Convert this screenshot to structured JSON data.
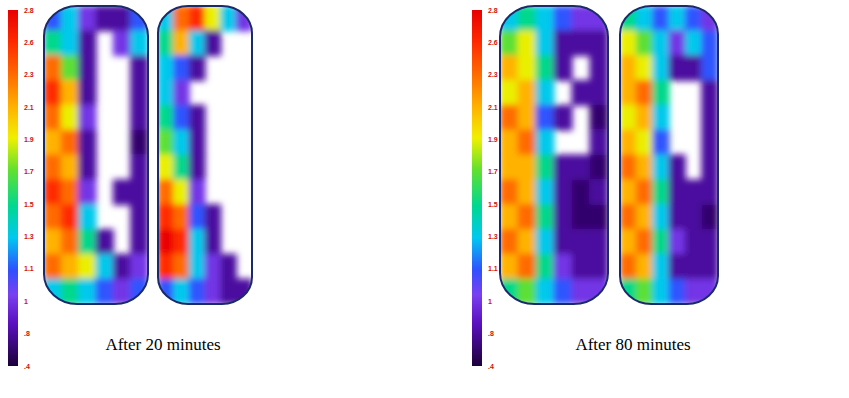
{
  "chart_data": [
    {
      "type": "heatmap",
      "title": "After 20 minutes",
      "colorbar": {
        "range": [
          0.4,
          2.8
        ],
        "ticks": [
          2.8,
          2.6,
          2.3,
          2.1,
          1.9,
          1.7,
          1.5,
          1.3,
          1.1,
          1,
          {
            "value": 0.8,
            "label": ".8"
          },
          {
            "value": 0.4,
            "label": ".4"
          }
        ]
      },
      "maps": [
        {
          "cells": [
            [
              1.1,
              1.3,
              1.0,
              0.8,
              0.8,
              1.1
            ],
            [
              1.5,
              1.3,
              0.8,
              null,
              1.0,
              1.3
            ],
            [
              2.3,
              1.7,
              0.8,
              null,
              null,
              0.8
            ],
            [
              2.6,
              2.1,
              0.8,
              null,
              null,
              0.8
            ],
            [
              2.3,
              1.9,
              1.0,
              null,
              null,
              0.8
            ],
            [
              2.1,
              2.3,
              0.8,
              null,
              null,
              0.6
            ],
            [
              2.3,
              2.1,
              0.8,
              null,
              null,
              0.8
            ],
            [
              2.6,
              2.3,
              1.0,
              null,
              0.8,
              0.8
            ],
            [
              2.3,
              2.6,
              1.3,
              null,
              null,
              0.8
            ],
            [
              2.1,
              2.3,
              1.5,
              0.8,
              null,
              0.8
            ],
            [
              2.3,
              2.1,
              1.9,
              1.3,
              0.8,
              1.0
            ],
            [
              1.3,
              1.5,
              1.3,
              1.1,
              1.0,
              1.1
            ]
          ]
        },
        {
          "cells": [
            [
              1.3,
              2.3,
              2.6,
              1.9,
              1.3,
              1.0
            ],
            [
              1.5,
              2.1,
              1.3,
              0.8,
              null,
              null
            ],
            [
              1.3,
              1.1,
              0.8,
              null,
              null,
              null
            ],
            [
              1.3,
              1.0,
              null,
              null,
              null,
              null
            ],
            [
              1.5,
              1.1,
              0.8,
              null,
              null,
              null
            ],
            [
              1.7,
              1.3,
              0.8,
              null,
              null,
              null
            ],
            [
              1.9,
              1.5,
              0.8,
              null,
              null,
              null
            ],
            [
              2.3,
              1.9,
              1.0,
              null,
              null,
              null
            ],
            [
              2.6,
              2.3,
              1.1,
              0.8,
              null,
              null
            ],
            [
              2.8,
              2.6,
              1.3,
              0.8,
              null,
              null
            ],
            [
              2.6,
              2.3,
              1.3,
              1.0,
              0.8,
              null
            ],
            [
              1.1,
              1.3,
              1.1,
              1.0,
              0.8,
              0.8
            ]
          ]
        }
      ]
    },
    {
      "type": "heatmap",
      "title": "After 80 minutes",
      "colorbar": {
        "range": [
          0.4,
          2.8
        ],
        "ticks": [
          2.8,
          2.6,
          2.3,
          2.1,
          1.9,
          1.7,
          1.5,
          1.3,
          1.1,
          1,
          {
            "value": 0.8,
            "label": ".8"
          },
          {
            "value": 0.4,
            "label": ".4"
          }
        ]
      },
      "maps": [
        {
          "cells": [
            [
              1.3,
              1.5,
              1.3,
              1.1,
              1.0,
              1.0
            ],
            [
              1.7,
              1.9,
              1.3,
              0.8,
              0.8,
              0.8
            ],
            [
              2.1,
              1.9,
              1.5,
              0.8,
              null,
              0.8
            ],
            [
              1.9,
              2.1,
              1.3,
              null,
              0.8,
              0.8
            ],
            [
              2.3,
              2.1,
              1.1,
              0.8,
              null,
              0.6
            ],
            [
              2.1,
              2.3,
              1.3,
              null,
              null,
              0.8
            ],
            [
              2.1,
              2.1,
              1.5,
              0.8,
              0.8,
              0.6
            ],
            [
              2.3,
              2.1,
              1.3,
              0.8,
              0.6,
              0.8
            ],
            [
              2.1,
              2.3,
              1.5,
              0.8,
              0.6,
              0.6
            ],
            [
              2.3,
              2.1,
              1.3,
              0.8,
              0.8,
              0.8
            ],
            [
              2.1,
              2.3,
              1.5,
              1.0,
              0.8,
              0.8
            ],
            [
              1.5,
              1.7,
              1.3,
              1.1,
              1.0,
              1.0
            ]
          ]
        },
        {
          "cells": [
            [
              1.5,
              1.3,
              1.1,
              1.3,
              1.1,
              1.0
            ],
            [
              1.9,
              1.7,
              1.3,
              1.0,
              1.3,
              1.1
            ],
            [
              2.1,
              1.9,
              1.3,
              0.8,
              0.8,
              1.1
            ],
            [
              2.1,
              2.3,
              1.5,
              null,
              null,
              0.8
            ],
            [
              1.9,
              2.1,
              1.3,
              null,
              null,
              0.8
            ],
            [
              2.1,
              1.9,
              1.1,
              null,
              null,
              0.8
            ],
            [
              2.3,
              2.1,
              1.3,
              0.8,
              null,
              0.8
            ],
            [
              2.1,
              2.3,
              1.5,
              0.8,
              0.8,
              0.8
            ],
            [
              2.3,
              2.1,
              1.3,
              0.8,
              0.8,
              0.6
            ],
            [
              2.1,
              2.3,
              1.5,
              1.0,
              0.8,
              0.8
            ],
            [
              2.3,
              2.1,
              1.3,
              0.8,
              0.8,
              0.8
            ],
            [
              1.5,
              1.7,
              1.3,
              1.1,
              1.0,
              1.0
            ]
          ]
        }
      ]
    }
  ]
}
